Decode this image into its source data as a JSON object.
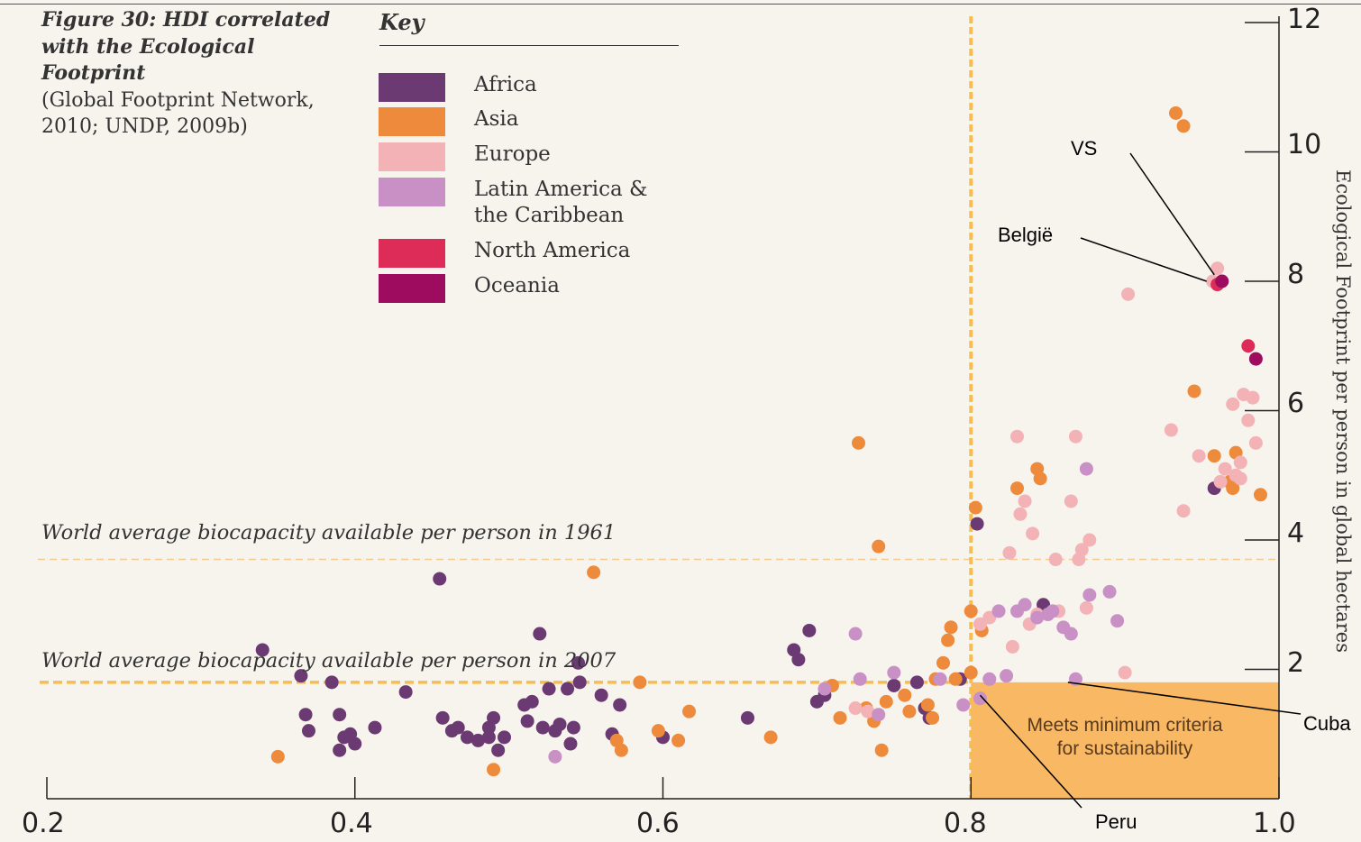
{
  "chart_data": {
    "type": "scatter",
    "title": "Figure 30: HDI correlated with the Ecological Footprint",
    "subtitle": "(Global Footprint Network, 2010; UNDP, 2009b)",
    "key_title": "Key",
    "xlim": [
      0.2,
      1.0
    ],
    "ylim": [
      0,
      12
    ],
    "x_ticks": [
      "0.2",
      "0.4",
      "0.6",
      "0.8",
      "1.0"
    ],
    "y_ticks": [
      "2",
      "4",
      "6",
      "8",
      "10",
      "12"
    ],
    "ylabel": "Ecological Footprint per person in global hectares",
    "legend": [
      {
        "name": "Africa",
        "color": "#6b3a72"
      },
      {
        "name": "Asia",
        "color": "#ee8a3c"
      },
      {
        "name": "Europe",
        "color": "#f3b3b6"
      },
      {
        "name": "Latin America &\nthe Caribbean",
        "color": "#c990c6"
      },
      {
        "name": "North America",
        "color": "#de2c59"
      },
      {
        "name": "Oceania",
        "color": "#9d0c5e"
      }
    ],
    "reference_lines": [
      {
        "label": "World average biocapacity available per person in 1961",
        "y": 3.7
      },
      {
        "label": "World average biocapacity available per person in 2007",
        "y": 1.8
      }
    ],
    "hdi_threshold": 0.8,
    "sustainability_box": {
      "label": "Meets minimum criteria\nfor sustainability",
      "x": [
        0.8,
        1.0
      ],
      "y": [
        0,
        1.8
      ]
    },
    "annotations": [
      {
        "label": "VS",
        "target": [
          0.958,
          8.1
        ]
      },
      {
        "label": "België",
        "target": [
          0.953,
          8.0
        ]
      },
      {
        "label": "Cuba",
        "target": [
          0.863,
          1.8
        ]
      },
      {
        "label": "Peru",
        "target": [
          0.806,
          1.6
        ]
      }
    ],
    "series": [
      {
        "name": "Africa",
        "color": "#6b3a72",
        "points": [
          [
            0.34,
            2.3
          ],
          [
            0.365,
            1.9
          ],
          [
            0.368,
            1.3
          ],
          [
            0.37,
            1.05
          ],
          [
            0.385,
            1.8
          ],
          [
            0.39,
            1.3
          ],
          [
            0.39,
            0.75
          ],
          [
            0.393,
            0.95
          ],
          [
            0.397,
            1.0
          ],
          [
            0.4,
            0.85
          ],
          [
            0.413,
            1.1
          ],
          [
            0.433,
            1.65
          ],
          [
            0.455,
            3.4
          ],
          [
            0.457,
            1.25
          ],
          [
            0.463,
            1.05
          ],
          [
            0.467,
            1.1
          ],
          [
            0.473,
            0.95
          ],
          [
            0.48,
            0.9
          ],
          [
            0.487,
            0.95
          ],
          [
            0.487,
            1.1
          ],
          [
            0.49,
            1.25
          ],
          [
            0.493,
            0.75
          ],
          [
            0.497,
            0.95
          ],
          [
            0.51,
            1.45
          ],
          [
            0.512,
            1.2
          ],
          [
            0.515,
            1.5
          ],
          [
            0.52,
            2.55
          ],
          [
            0.522,
            1.1
          ],
          [
            0.526,
            1.7
          ],
          [
            0.53,
            1.05
          ],
          [
            0.533,
            1.15
          ],
          [
            0.538,
            1.7
          ],
          [
            0.54,
            0.85
          ],
          [
            0.542,
            1.1
          ],
          [
            0.545,
            2.1
          ],
          [
            0.546,
            1.8
          ],
          [
            0.56,
            1.6
          ],
          [
            0.567,
            1.0
          ],
          [
            0.572,
            1.45
          ],
          [
            0.6,
            0.95
          ],
          [
            0.655,
            1.25
          ],
          [
            0.685,
            2.3
          ],
          [
            0.688,
            2.15
          ],
          [
            0.695,
            2.6
          ],
          [
            0.705,
            1.6
          ],
          [
            0.7,
            1.5
          ],
          [
            0.75,
            1.75
          ],
          [
            0.765,
            1.8
          ],
          [
            0.77,
            1.4
          ],
          [
            0.773,
            1.25
          ],
          [
            0.793,
            1.85
          ],
          [
            0.804,
            4.25
          ],
          [
            0.847,
            3.0
          ],
          [
            0.958,
            4.8
          ]
        ]
      },
      {
        "name": "Asia",
        "color": "#ee8a3c",
        "points": [
          [
            0.35,
            0.65
          ],
          [
            0.49,
            0.45
          ],
          [
            0.555,
            3.5
          ],
          [
            0.57,
            0.9
          ],
          [
            0.573,
            0.75
          ],
          [
            0.585,
            1.8
          ],
          [
            0.597,
            1.05
          ],
          [
            0.61,
            0.9
          ],
          [
            0.617,
            1.35
          ],
          [
            0.67,
            0.95
          ],
          [
            0.71,
            1.75
          ],
          [
            0.715,
            1.25
          ],
          [
            0.727,
            5.5
          ],
          [
            0.732,
            1.4
          ],
          [
            0.737,
            1.2
          ],
          [
            0.742,
            0.75
          ],
          [
            0.745,
            1.5
          ],
          [
            0.74,
            3.9
          ],
          [
            0.757,
            1.6
          ],
          [
            0.76,
            1.35
          ],
          [
            0.772,
            1.45
          ],
          [
            0.775,
            1.25
          ],
          [
            0.777,
            1.85
          ],
          [
            0.782,
            2.1
          ],
          [
            0.785,
            2.45
          ],
          [
            0.787,
            2.65
          ],
          [
            0.79,
            1.85
          ],
          [
            0.8,
            1.95
          ],
          [
            0.8,
            2.9
          ],
          [
            0.803,
            4.5
          ],
          [
            0.807,
            2.6
          ],
          [
            0.83,
            4.8
          ],
          [
            0.843,
            5.1
          ],
          [
            0.845,
            4.95
          ],
          [
            0.933,
            10.6
          ],
          [
            0.938,
            10.4
          ],
          [
            0.945,
            6.3
          ],
          [
            0.958,
            5.3
          ],
          [
            0.968,
            4.9
          ],
          [
            0.97,
            4.8
          ],
          [
            0.972,
            5.35
          ],
          [
            0.988,
            4.7
          ]
        ]
      },
      {
        "name": "Europe",
        "color": "#f3b3b6",
        "points": [
          [
            0.725,
            1.4
          ],
          [
            0.733,
            1.35
          ],
          [
            0.806,
            2.7
          ],
          [
            0.812,
            2.8
          ],
          [
            0.825,
            3.8
          ],
          [
            0.827,
            2.35
          ],
          [
            0.83,
            5.6
          ],
          [
            0.832,
            4.4
          ],
          [
            0.835,
            4.6
          ],
          [
            0.838,
            2.7
          ],
          [
            0.84,
            4.1
          ],
          [
            0.843,
            2.85
          ],
          [
            0.855,
            3.7
          ],
          [
            0.857,
            2.9
          ],
          [
            0.865,
            4.6
          ],
          [
            0.868,
            5.6
          ],
          [
            0.87,
            3.7
          ],
          [
            0.872,
            3.85
          ],
          [
            0.875,
            2.95
          ],
          [
            0.877,
            4.0
          ],
          [
            0.9,
            1.95
          ],
          [
            0.902,
            7.8
          ],
          [
            0.93,
            5.7
          ],
          [
            0.938,
            4.45
          ],
          [
            0.948,
            5.3
          ],
          [
            0.957,
            8.0
          ],
          [
            0.96,
            8.2
          ],
          [
            0.962,
            4.9
          ],
          [
            0.965,
            5.1
          ],
          [
            0.97,
            6.1
          ],
          [
            0.972,
            5.0
          ],
          [
            0.975,
            5.2
          ],
          [
            0.977,
            6.25
          ],
          [
            0.98,
            5.85
          ],
          [
            0.975,
            4.95
          ],
          [
            0.983,
            6.2
          ],
          [
            0.985,
            5.5
          ]
        ]
      },
      {
        "name": "Latin America & the Caribbean",
        "color": "#c990c6",
        "points": [
          [
            0.53,
            0.65
          ],
          [
            0.705,
            1.7
          ],
          [
            0.725,
            2.55
          ],
          [
            0.728,
            1.85
          ],
          [
            0.74,
            1.3
          ],
          [
            0.75,
            1.95
          ],
          [
            0.78,
            1.85
          ],
          [
            0.795,
            1.45
          ],
          [
            0.806,
            1.55
          ],
          [
            0.812,
            1.85
          ],
          [
            0.818,
            2.9
          ],
          [
            0.823,
            1.9
          ],
          [
            0.83,
            2.9
          ],
          [
            0.835,
            3.0
          ],
          [
            0.843,
            2.8
          ],
          [
            0.85,
            2.85
          ],
          [
            0.853,
            2.9
          ],
          [
            0.86,
            2.65
          ],
          [
            0.865,
            2.55
          ],
          [
            0.868,
            1.85
          ],
          [
            0.875,
            5.1
          ],
          [
            0.877,
            3.15
          ],
          [
            0.895,
            2.75
          ],
          [
            0.89,
            3.2
          ]
        ]
      },
      {
        "name": "North America",
        "color": "#de2c59",
        "points": [
          [
            0.96,
            7.95
          ],
          [
            0.98,
            7.0
          ]
        ]
      },
      {
        "name": "Oceania",
        "color": "#9d0c5e",
        "points": [
          [
            0.963,
            8.0
          ],
          [
            0.985,
            6.8
          ]
        ]
      }
    ]
  }
}
